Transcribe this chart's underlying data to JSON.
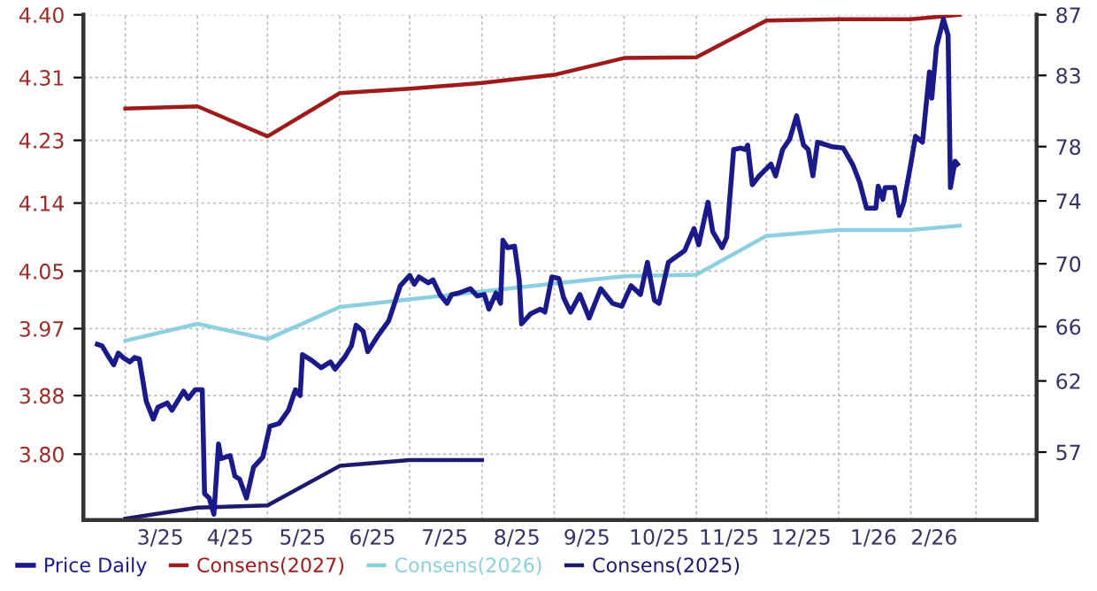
{
  "chart_data": {
    "type": "line",
    "legend": "bottom",
    "grid": true,
    "line_style": "solid",
    "marker": "none",
    "xlim": [
      "2025-02-11",
      "2026-03-27"
    ],
    "xticks": [
      {
        "value": "2025-03-01",
        "label": null
      },
      {
        "value": "2025-04-01",
        "label": null
      },
      {
        "value": "2025-05-01",
        "label": null
      },
      {
        "value": "2025-06-01",
        "label": null
      },
      {
        "value": "2025-07-01",
        "label": null
      },
      {
        "value": "2025-08-01",
        "label": null
      },
      {
        "value": "2025-09-01",
        "label": null
      },
      {
        "value": "2025-10-01",
        "label": null
      },
      {
        "value": "2025-11-01",
        "label": null
      },
      {
        "value": "2025-12-01",
        "label": null
      },
      {
        "value": "2026-01-01",
        "label": null
      },
      {
        "value": "2026-02-01",
        "label": null
      },
      {
        "value": "2026-03-01",
        "label": null
      },
      {
        "value": "2025-03-16",
        "label": "3/25"
      },
      {
        "value": "2025-04-15",
        "label": "4/25"
      },
      {
        "value": "2025-05-16",
        "label": "5/25"
      },
      {
        "value": "2025-06-15",
        "label": "6/25"
      },
      {
        "value": "2025-07-16",
        "label": "7/25"
      },
      {
        "value": "2025-08-16",
        "label": "8/25"
      },
      {
        "value": "2025-09-15",
        "label": "9/25"
      },
      {
        "value": "2025-10-16",
        "label": "10/25"
      },
      {
        "value": "2025-11-15",
        "label": "11/25"
      },
      {
        "value": "2025-12-16",
        "label": "12/25"
      },
      {
        "value": "2026-01-16",
        "label": "1/26"
      },
      {
        "value": "2026-02-11",
        "label": "2/26"
      }
    ],
    "ylim": [
      3.71,
      4.4
    ],
    "yticks": [
      {
        "value": 3.8,
        "label": "3.80"
      },
      {
        "value": 3.88,
        "label": "3.88"
      },
      {
        "value": 3.9714,
        "label": "3.97"
      },
      {
        "value": 4.05,
        "label": "4.05"
      },
      {
        "value": 4.1429,
        "label": "4.14"
      },
      {
        "value": 4.2286,
        "label": "4.23"
      },
      {
        "value": 4.3143,
        "label": "4.31"
      },
      {
        "value": 4.4,
        "label": "4.40"
      }
    ],
    "y2lim": [
      52.5,
      87
    ],
    "y2ticks": [
      {
        "value": 57.14,
        "label": "57"
      },
      62,
      {
        "value": 65.71,
        "label": "66"
      },
      70,
      {
        "value": 74.29,
        "label": "74"
      },
      78,
      {
        "value": 82.86,
        "label": "83"
      },
      87
    ],
    "series": [
      {
        "name": "Price Daily",
        "color": "#1b1a8a",
        "axis": "y2",
        "x": [
          "2025-02-17",
          "2025-02-19",
          "2025-02-22",
          "2025-02-24",
          "2025-02-26",
          "2025-02-28",
          "2025-03-03",
          "2025-03-05",
          "2025-03-07",
          "2025-03-10",
          "2025-03-13",
          "2025-03-15",
          "2025-03-19",
          "2025-03-21",
          "2025-03-26",
          "2025-03-28",
          "2025-03-31",
          "2025-04-03",
          "2025-04-04",
          "2025-04-06",
          "2025-04-08",
          "2025-04-10",
          "2025-04-11",
          "2025-04-15",
          "2025-04-17",
          "2025-04-19",
          "2025-04-22",
          "2025-04-25",
          "2025-04-29",
          "2025-05-02",
          "2025-05-06",
          "2025-05-10",
          "2025-05-13",
          "2025-05-15",
          "2025-05-16",
          "2025-05-20",
          "2025-05-24",
          "2025-05-28",
          "2025-05-30",
          "2025-06-03",
          "2025-06-06",
          "2025-06-08",
          "2025-06-11",
          "2025-06-13",
          "2025-06-17",
          "2025-06-22",
          "2025-06-27",
          "2025-07-01",
          "2025-07-03",
          "2025-07-05",
          "2025-07-09",
          "2025-07-11",
          "2025-07-14",
          "2025-07-17",
          "2025-07-19",
          "2025-07-22",
          "2025-07-27",
          "2025-07-30",
          "2025-08-02",
          "2025-08-04",
          "2025-08-07",
          "2025-08-09",
          "2025-08-10",
          "2025-08-12",
          "2025-08-15",
          "2025-08-17",
          "2025-08-18",
          "2025-08-22",
          "2025-08-26",
          "2025-08-28",
          "2025-08-31",
          "2025-09-03",
          "2025-09-05",
          "2025-09-08",
          "2025-09-12",
          "2025-09-16",
          "2025-09-21",
          "2025-09-26",
          "2025-09-30",
          "2025-10-04",
          "2025-10-08",
          "2025-10-11",
          "2025-10-14",
          "2025-10-16",
          "2025-10-20",
          "2025-10-27",
          "2025-10-31",
          "2025-11-02",
          "2025-11-06",
          "2025-11-08",
          "2025-11-12",
          "2025-11-14",
          "2025-11-17",
          "2025-11-20",
          "2025-11-22",
          "2025-11-23",
          "2025-11-25",
          "2025-11-28",
          "2025-12-03",
          "2025-12-05",
          "2025-12-08",
          "2025-12-11",
          "2025-12-14",
          "2025-12-17",
          "2025-12-19",
          "2025-12-21",
          "2025-12-23",
          "2025-12-29",
          "2026-01-03",
          "2026-01-07",
          "2026-01-10",
          "2026-01-13",
          "2026-01-17",
          "2026-01-18",
          "2026-01-20",
          "2026-01-21",
          "2026-01-25",
          "2026-01-27",
          "2026-01-29",
          "2026-02-01",
          "2026-02-03",
          "2026-02-06",
          "2026-02-09",
          "2026-02-10",
          "2026-02-12",
          "2026-02-15",
          "2026-02-17",
          "2026-02-18",
          "2026-02-20",
          "2026-02-21"
        ],
        "values": [
          64.5,
          64.4,
          63.6,
          63.1,
          63.9,
          63.6,
          63.3,
          63.6,
          63.5,
          60.6,
          59.4,
          60.2,
          60.5,
          60.0,
          61.3,
          60.8,
          61.4,
          61.4,
          54.3,
          54.0,
          52.9,
          57.7,
          56.7,
          56.9,
          55.5,
          55.3,
          54.0,
          56.1,
          56.8,
          58.9,
          59.1,
          60.0,
          61.4,
          61.0,
          63.8,
          63.4,
          62.9,
          63.3,
          62.8,
          63.6,
          64.4,
          65.8,
          65.4,
          64.0,
          65.0,
          66.1,
          68.5,
          69.2,
          68.6,
          69.1,
          68.7,
          68.9,
          67.9,
          67.3,
          67.9,
          68.0,
          68.3,
          67.8,
          67.9,
          66.9,
          68.0,
          67.3,
          71.6,
          71.1,
          71.2,
          68.9,
          65.9,
          66.6,
          66.9,
          66.7,
          69.1,
          69.0,
          67.7,
          66.7,
          67.9,
          66.3,
          68.3,
          67.3,
          67.1,
          68.5,
          67.9,
          70.1,
          67.5,
          67.3,
          70.1,
          70.9,
          72.4,
          71.3,
          74.2,
          72.2,
          71.1,
          71.8,
          77.8,
          77.9,
          77.8,
          78.1,
          75.4,
          76.0,
          76.8,
          76.0,
          77.8,
          78.5,
          80.1,
          78.1,
          77.8,
          76.0,
          78.3,
          78.0,
          77.9,
          76.8,
          75.6,
          73.8,
          73.8,
          75.3,
          74.4,
          75.2,
          75.2,
          73.3,
          74.2,
          76.8,
          78.7,
          78.3,
          83.1,
          81.3,
          84.8,
          86.7,
          85.6,
          75.2,
          77.0,
          76.8
        ]
      },
      {
        "name": "Consens(2027)",
        "color": "#9e1b1b",
        "x": [
          "2025-03-01",
          "2025-04-01",
          "2025-05-01",
          "2025-06-01",
          "2025-07-01",
          "2025-08-01",
          "2025-09-01",
          "2025-10-01",
          "2025-11-01",
          "2025-12-01",
          "2026-01-01",
          "2026-02-01",
          "2026-02-22"
        ],
        "values": [
          4.272,
          4.275,
          4.234,
          4.293,
          4.299,
          4.307,
          4.318,
          4.341,
          4.342,
          4.392,
          4.394,
          4.394,
          4.4
        ]
      },
      {
        "name": "Consens(2026)",
        "color": "#8ccfe0",
        "x": [
          "2025-03-01",
          "2025-04-01",
          "2025-05-01",
          "2025-06-01",
          "2025-09-01",
          "2025-10-01",
          "2025-11-01",
          "2025-12-01",
          "2026-01-01",
          "2026-02-01",
          "2026-02-22"
        ],
        "values": [
          3.955,
          3.978,
          3.957,
          4.001,
          4.033,
          4.043,
          4.045,
          4.098,
          4.106,
          4.106,
          4.112
        ]
      },
      {
        "name": "Consens(2025)",
        "color": "#1c1a6b",
        "x": [
          "2025-03-01",
          "2025-04-01",
          "2025-05-01",
          "2025-06-01",
          "2025-07-01",
          "2025-08-01"
        ],
        "values": [
          3.712,
          3.727,
          3.73,
          3.784,
          3.792,
          3.792
        ]
      }
    ]
  }
}
